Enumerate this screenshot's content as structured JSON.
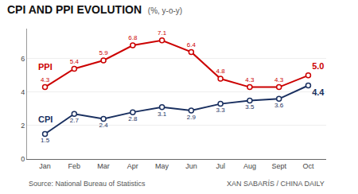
{
  "chart_data": {
    "type": "line",
    "title": "CPI AND PPI EVOLUTION",
    "subtitle": "(%, y-o-y)",
    "annotations": [
      "Source: National Bureau of Statistics",
      "XAN SABARÍS / CHINA DAILY"
    ],
    "categories": [
      "Jan",
      "Feb",
      "Mar",
      "Apr",
      "May",
      "Jun",
      "Jul",
      "Aug",
      "Sept",
      "Oct"
    ],
    "series": [
      {
        "name": "PPI",
        "color": "#cc0000",
        "marker": "circle",
        "values": [
          4.3,
          5.4,
          5.9,
          6.8,
          7.1,
          6.4,
          4.8,
          4.3,
          4.3,
          5.0
        ],
        "value_labels": [
          "4.3",
          "5.4",
          "5.9",
          "6.8",
          "7.1",
          "6.4",
          "4.8",
          "4.3",
          "4.3",
          "5.0"
        ]
      },
      {
        "name": "CPI",
        "color": "#1a3060",
        "marker": "circle",
        "values": [
          1.5,
          2.7,
          2.4,
          2.8,
          3.1,
          2.9,
          3.3,
          3.5,
          3.6,
          4.4
        ],
        "value_labels": [
          "1.5",
          "2.7",
          "2.4",
          "2.8",
          "3.1",
          "2.9",
          "3.3",
          "3.5",
          "3.6",
          "4.4"
        ]
      }
    ],
    "ylim": [
      0,
      7.8
    ],
    "yticks": [
      0,
      2,
      4,
      6
    ],
    "grid": true,
    "data_labels": true
  }
}
